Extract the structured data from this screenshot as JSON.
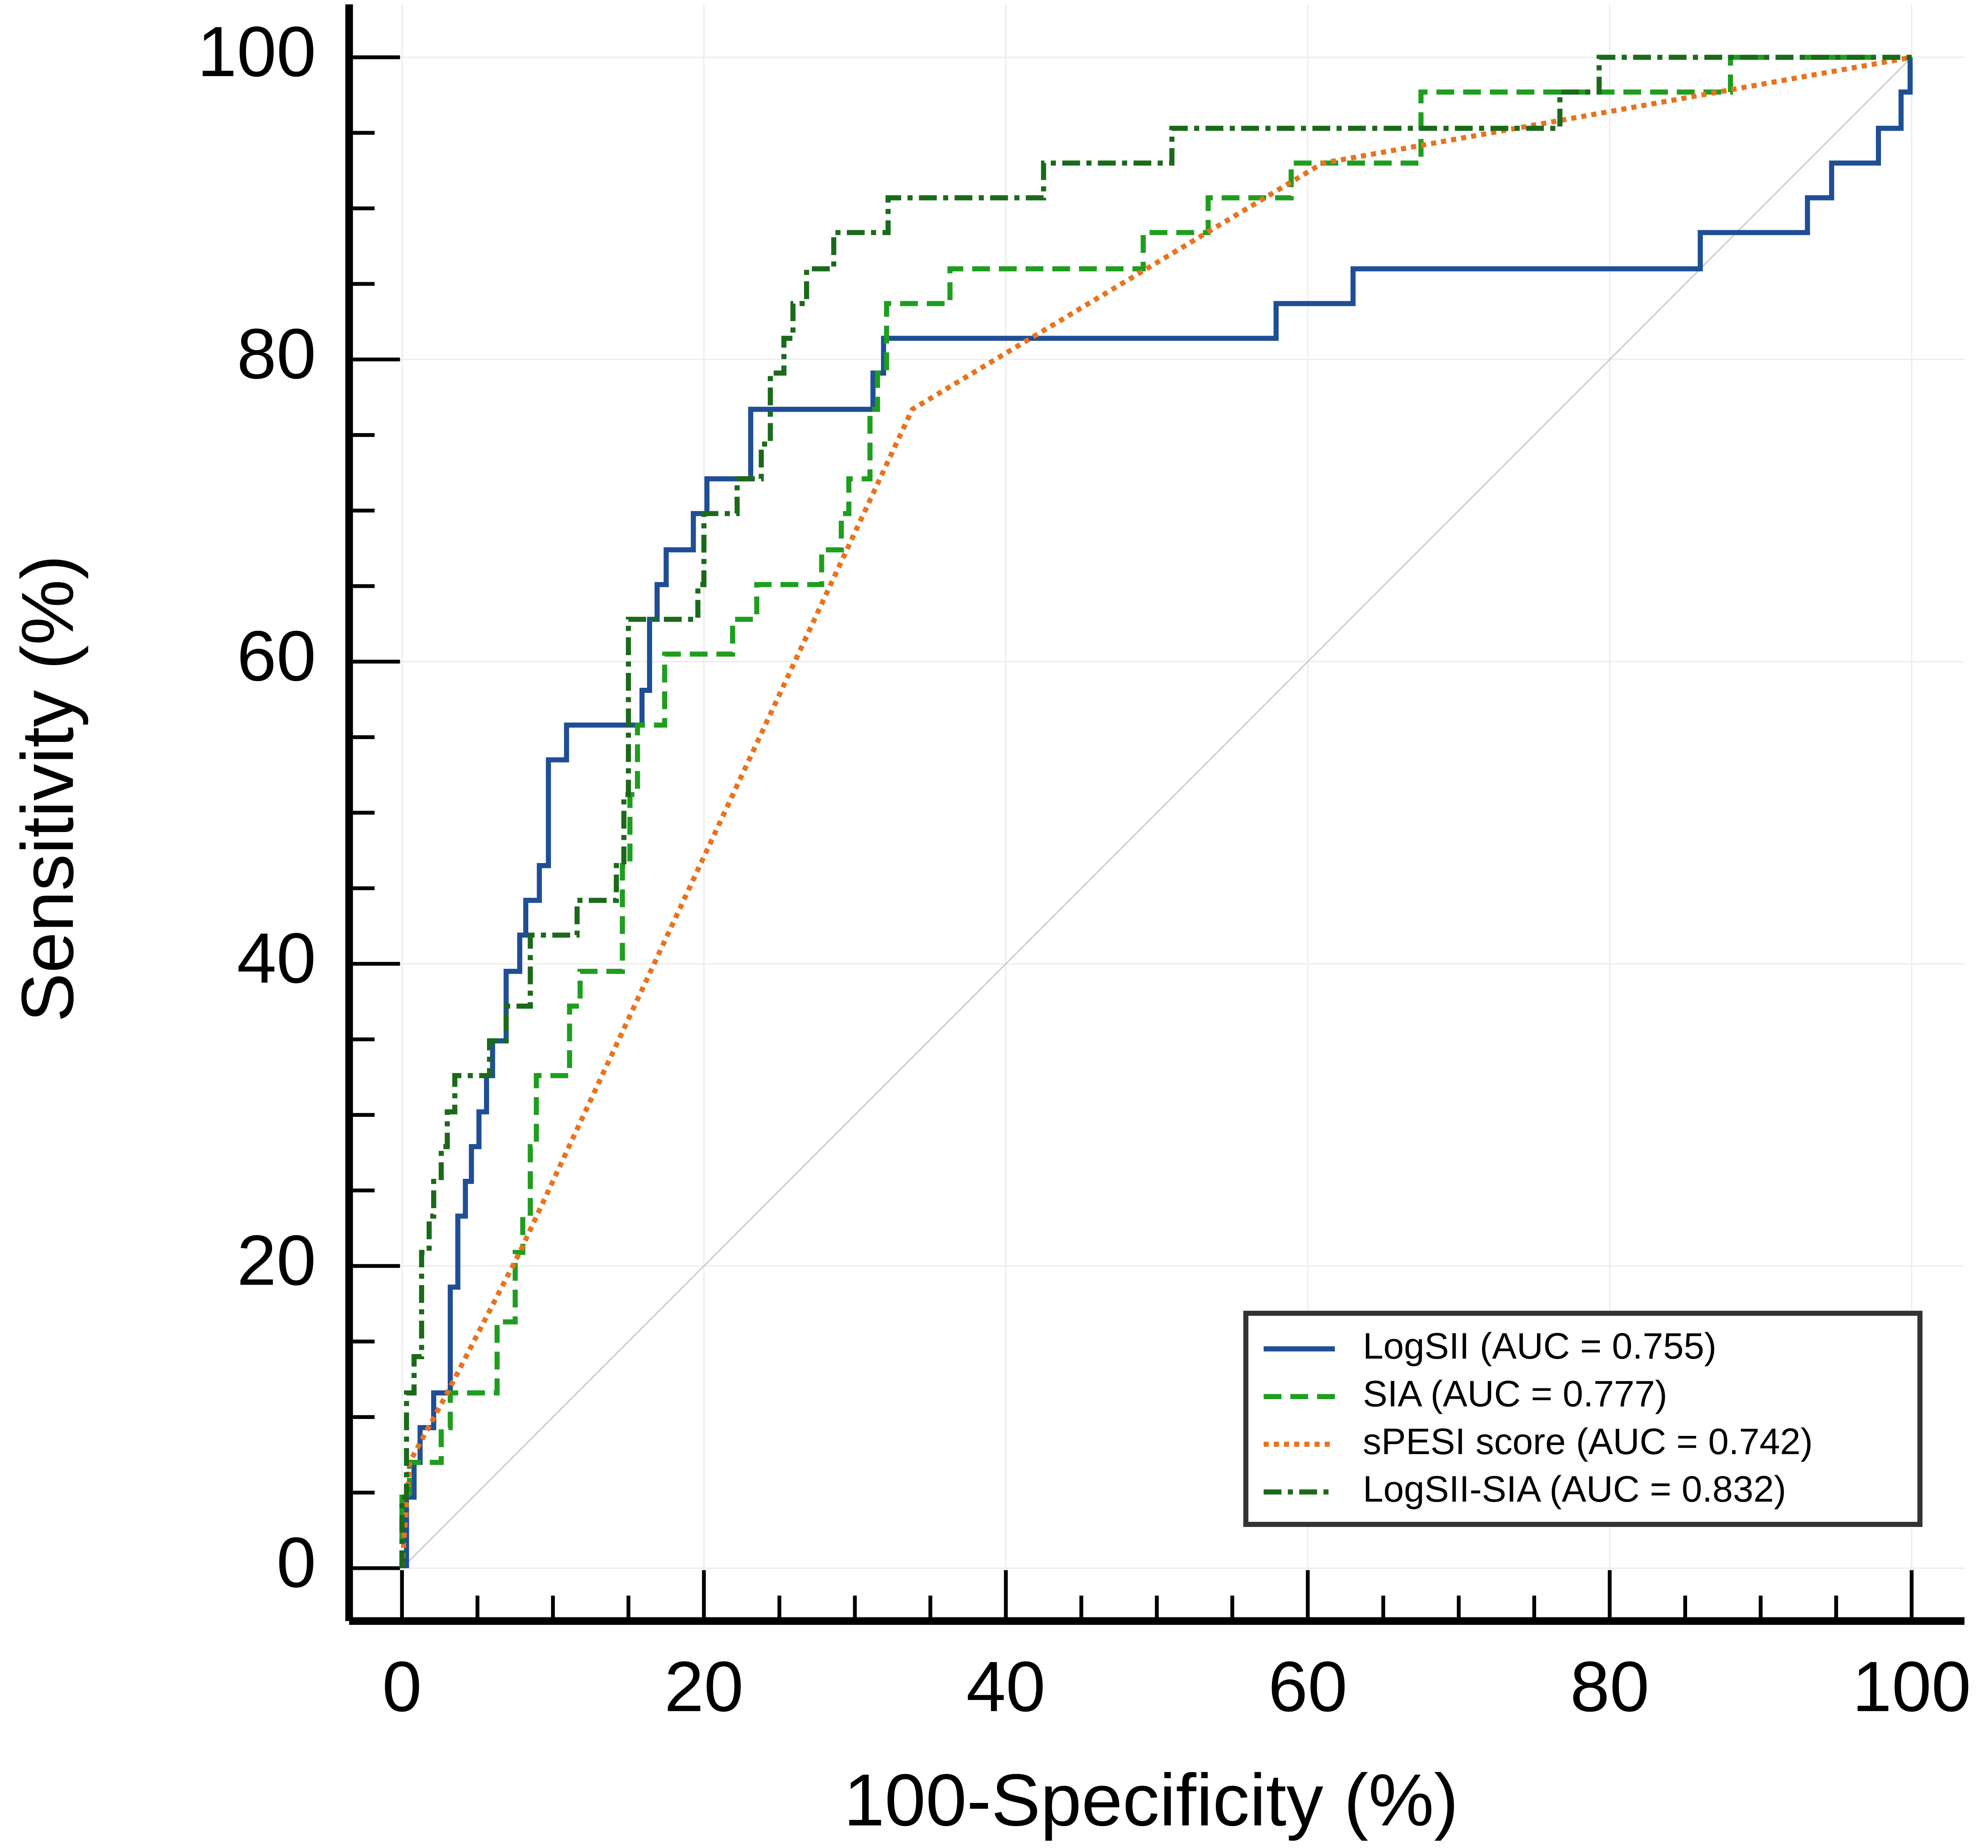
{
  "chart_data": {
    "type": "roc",
    "xlabel": "100-Specificity (%)",
    "ylabel": "Sensitivity (%)",
    "xlim": [
      -3.5,
      103.5
    ],
    "ylim": [
      -3.5,
      103.5
    ],
    "xticks": [
      0,
      20,
      40,
      60,
      80,
      100
    ],
    "yticks": [
      0,
      20,
      40,
      60,
      80,
      100
    ],
    "xminorticks": [
      5,
      10,
      15,
      25,
      30,
      35,
      45,
      50,
      55,
      65,
      70,
      75,
      85,
      90,
      95
    ],
    "yminorticks": [
      5,
      10,
      15,
      25,
      30,
      35,
      45,
      50,
      55,
      65,
      70,
      75,
      85,
      90,
      95
    ],
    "grid": true,
    "diagonal": true,
    "legend": "lower right",
    "series": [
      {
        "name": "LogSII (AUC = 0.755)",
        "color": "#1f4e96",
        "linestyle": "solid",
        "x": [
          0.3,
          0.3,
          0.8,
          0.8,
          1.2,
          1.2,
          2.1,
          2.1,
          3.2,
          3.2,
          3.7,
          3.7,
          4.2,
          4.2,
          4.6,
          4.6,
          5.1,
          5.1,
          5.6,
          5.6,
          6,
          6,
          6.9,
          6.9,
          7.8,
          7.8,
          8.2,
          8.2,
          9.1,
          9.1,
          9.7,
          9.7,
          10.9,
          10.9,
          15.9,
          15.9,
          16.4,
          16.4,
          16.9,
          16.9,
          17.5,
          17.5,
          19.3,
          19.3,
          20.2,
          20.2,
          23.1,
          23.1,
          31.2,
          31.2,
          31.9,
          31.9,
          57.9,
          57.9,
          63,
          63,
          86,
          86,
          93.1,
          93.1,
          94.7,
          94.7,
          97.8,
          97.8,
          99.3,
          99.3,
          99.9,
          99.9,
          100
        ],
        "values": [
          0,
          4.7,
          4.7,
          7,
          7,
          9.3,
          9.3,
          11.6,
          11.6,
          18.6,
          18.6,
          23.3,
          23.3,
          25.6,
          25.6,
          27.9,
          27.9,
          30.2,
          30.2,
          32.6,
          32.6,
          34.9,
          34.9,
          39.5,
          39.5,
          41.9,
          41.9,
          44.2,
          44.2,
          46.5,
          46.5,
          53.5,
          53.5,
          55.8,
          55.8,
          58.1,
          58.1,
          62.8,
          62.8,
          65.1,
          65.1,
          67.4,
          67.4,
          69.8,
          69.8,
          72.1,
          72.1,
          76.7,
          76.7,
          79.1,
          79.1,
          81.4,
          81.4,
          83.7,
          83.7,
          86,
          86,
          88.4,
          88.4,
          90.7,
          90.7,
          93,
          93,
          95.3,
          95.3,
          97.7,
          97.7,
          100,
          100
        ]
      },
      {
        "name": "SIA (AUC = 0.777)",
        "color": "#1e9e1e",
        "linestyle": "dashed",
        "x": [
          0,
          0,
          0.5,
          0.5,
          2.6,
          2.6,
          3.2,
          3.2,
          6.3,
          6.3,
          7.5,
          7.5,
          8,
          8,
          8.5,
          8.5,
          8.9,
          8.9,
          11.1,
          11.1,
          11.8,
          11.8,
          14.6,
          14.6,
          15.1,
          15.1,
          15.6,
          15.6,
          17.4,
          17.4,
          21.9,
          21.9,
          23.5,
          23.5,
          27.8,
          27.8,
          29.1,
          29.1,
          29.6,
          29.6,
          31,
          31,
          31.5,
          31.5,
          32.1,
          32.1,
          36.3,
          36.3,
          49.1,
          49.1,
          53.4,
          53.4,
          58.9,
          58.9,
          67.5,
          67.5,
          88,
          88,
          100
        ],
        "values": [
          0,
          4.7,
          4.7,
          7,
          7,
          9.3,
          9.3,
          11.6,
          11.6,
          16.3,
          16.3,
          20.9,
          20.9,
          23.3,
          23.3,
          27.9,
          27.9,
          32.6,
          32.6,
          37.2,
          37.2,
          39.5,
          39.5,
          46.5,
          46.5,
          51.2,
          51.2,
          55.8,
          55.8,
          60.5,
          60.5,
          62.8,
          62.8,
          65.1,
          65.1,
          67.4,
          67.4,
          69.8,
          69.8,
          72.1,
          72.1,
          76.7,
          76.7,
          79.1,
          79.1,
          83.7,
          83.7,
          86,
          86,
          88.4,
          88.4,
          90.7,
          90.7,
          93,
          93,
          97.7,
          97.7,
          100,
          100
        ]
      },
      {
        "name": "sPESI score (AUC = 0.742)",
        "color": "#e8731f",
        "linestyle": "dotted",
        "x": [
          0,
          0.5,
          3,
          7.8,
          33.8,
          61,
          100
        ],
        "values": [
          0,
          7,
          11.6,
          20.9,
          76.7,
          93,
          100
        ]
      },
      {
        "name": "LogSII-SIA (AUC = 0.832)",
        "color": "#1a6a1a",
        "linestyle": "dashdot",
        "x": [
          0,
          0,
          0.3,
          0.3,
          0.8,
          0.8,
          1.3,
          1.3,
          1.8,
          1.8,
          2.1,
          2.1,
          2.6,
          2.6,
          3,
          3,
          3.5,
          3.5,
          5.8,
          5.8,
          6.9,
          6.9,
          8.5,
          8.5,
          11.6,
          11.6,
          14.2,
          14.2,
          14.7,
          14.7,
          15,
          15,
          19.6,
          19.6,
          20,
          20,
          22.2,
          22.2,
          23.8,
          23.8,
          24.4,
          24.4,
          25.3,
          25.3,
          25.9,
          25.9,
          26.8,
          26.8,
          28.6,
          28.6,
          32.2,
          32.2,
          42.5,
          42.5,
          51,
          51,
          76.7,
          76.7,
          79.3,
          79.3,
          100
        ],
        "values": [
          0,
          4.7,
          4.7,
          11.6,
          11.6,
          14,
          14,
          20.9,
          20.9,
          23.3,
          23.3,
          25.6,
          25.6,
          27.9,
          27.9,
          30.2,
          30.2,
          32.6,
          32.6,
          34.9,
          34.9,
          37.2,
          37.2,
          41.9,
          41.9,
          44.2,
          44.2,
          46.5,
          46.5,
          51.2,
          51.2,
          62.8,
          62.8,
          65.1,
          65.1,
          69.8,
          69.8,
          72.1,
          72.1,
          74.4,
          74.4,
          79.1,
          79.1,
          81.4,
          81.4,
          83.7,
          83.7,
          86,
          86,
          88.4,
          88.4,
          90.7,
          90.7,
          93,
          93,
          95.3,
          95.3,
          97.7,
          97.7,
          100,
          100
        ]
      }
    ]
  }
}
